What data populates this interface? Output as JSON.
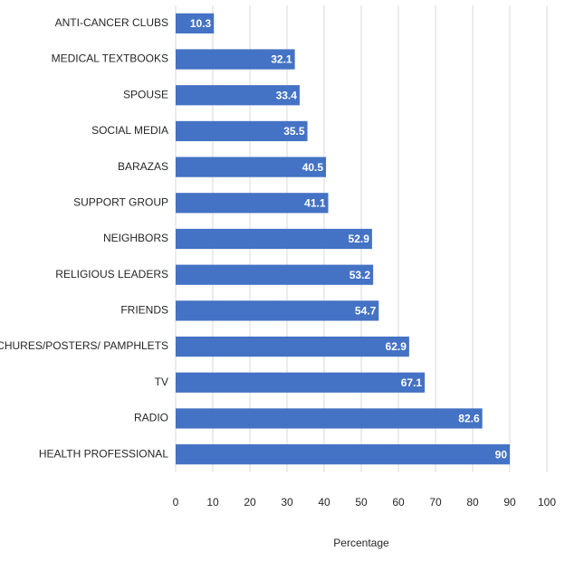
{
  "chart_data": {
    "type": "bar",
    "orientation": "horizontal",
    "categories": [
      "ANTI-CANCER CLUBS",
      "MEDICAL TEXTBOOKS",
      "SPOUSE",
      "SOCIAL MEDIA",
      "BARAZAS",
      "SUPPORT GROUP",
      "NEIGHBORS",
      "RELIGIOUS LEADERS",
      "FRIENDS",
      "BRONCHURES/POSTERS/ PAMPHLETS",
      "TV",
      "RADIO",
      "HEALTH PROFESSIONAL"
    ],
    "values": [
      10.3,
      32.1,
      33.4,
      35.5,
      40.5,
      41.1,
      52.9,
      53.2,
      54.7,
      62.9,
      67.1,
      82.6,
      90
    ],
    "color": "#4472c4",
    "xlabel": "Percentage",
    "xlim": [
      0,
      100
    ],
    "xticks": [
      0,
      10,
      20,
      30,
      40,
      50,
      60,
      70,
      80,
      90,
      100
    ],
    "grid": true
  }
}
